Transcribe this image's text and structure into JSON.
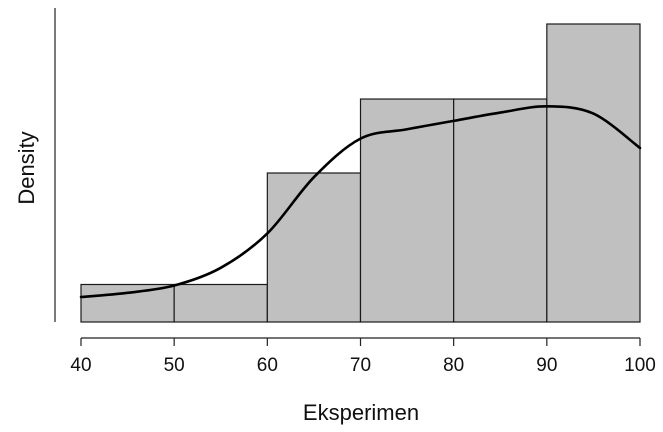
{
  "chart_data": {
    "type": "histogram",
    "title": "",
    "xlabel": "Eksperimen",
    "ylabel": "Density",
    "xlim": [
      40,
      100
    ],
    "x_ticks": [
      40,
      50,
      60,
      70,
      80,
      90,
      100
    ],
    "y_ticks_shown": false,
    "bins": [
      {
        "start": 40,
        "end": 50,
        "density": 0.0036
      },
      {
        "start": 50,
        "end": 60,
        "density": 0.0036
      },
      {
        "start": 60,
        "end": 70,
        "density": 0.0143
      },
      {
        "start": 70,
        "end": 80,
        "density": 0.0214
      },
      {
        "start": 80,
        "end": 90,
        "density": 0.0214
      },
      {
        "start": 90,
        "end": 100,
        "density": 0.0286
      }
    ],
    "density_curve": [
      [
        40,
        0.0024
      ],
      [
        45,
        0.0028
      ],
      [
        50,
        0.0035
      ],
      [
        55,
        0.0052
      ],
      [
        60,
        0.0085
      ],
      [
        65,
        0.0139
      ],
      [
        70,
        0.0176
      ],
      [
        75,
        0.0185
      ],
      [
        80,
        0.0193
      ],
      [
        85,
        0.0201
      ],
      [
        90,
        0.0207
      ],
      [
        95,
        0.02
      ],
      [
        100,
        0.0167
      ]
    ],
    "ylim": [
      0,
      0.0286
    ],
    "colors": {
      "bar_fill": "#c0c0c0",
      "bar_edge": "#1a1a1a",
      "curve": "#000000"
    },
    "grid": false,
    "legend": "none"
  }
}
